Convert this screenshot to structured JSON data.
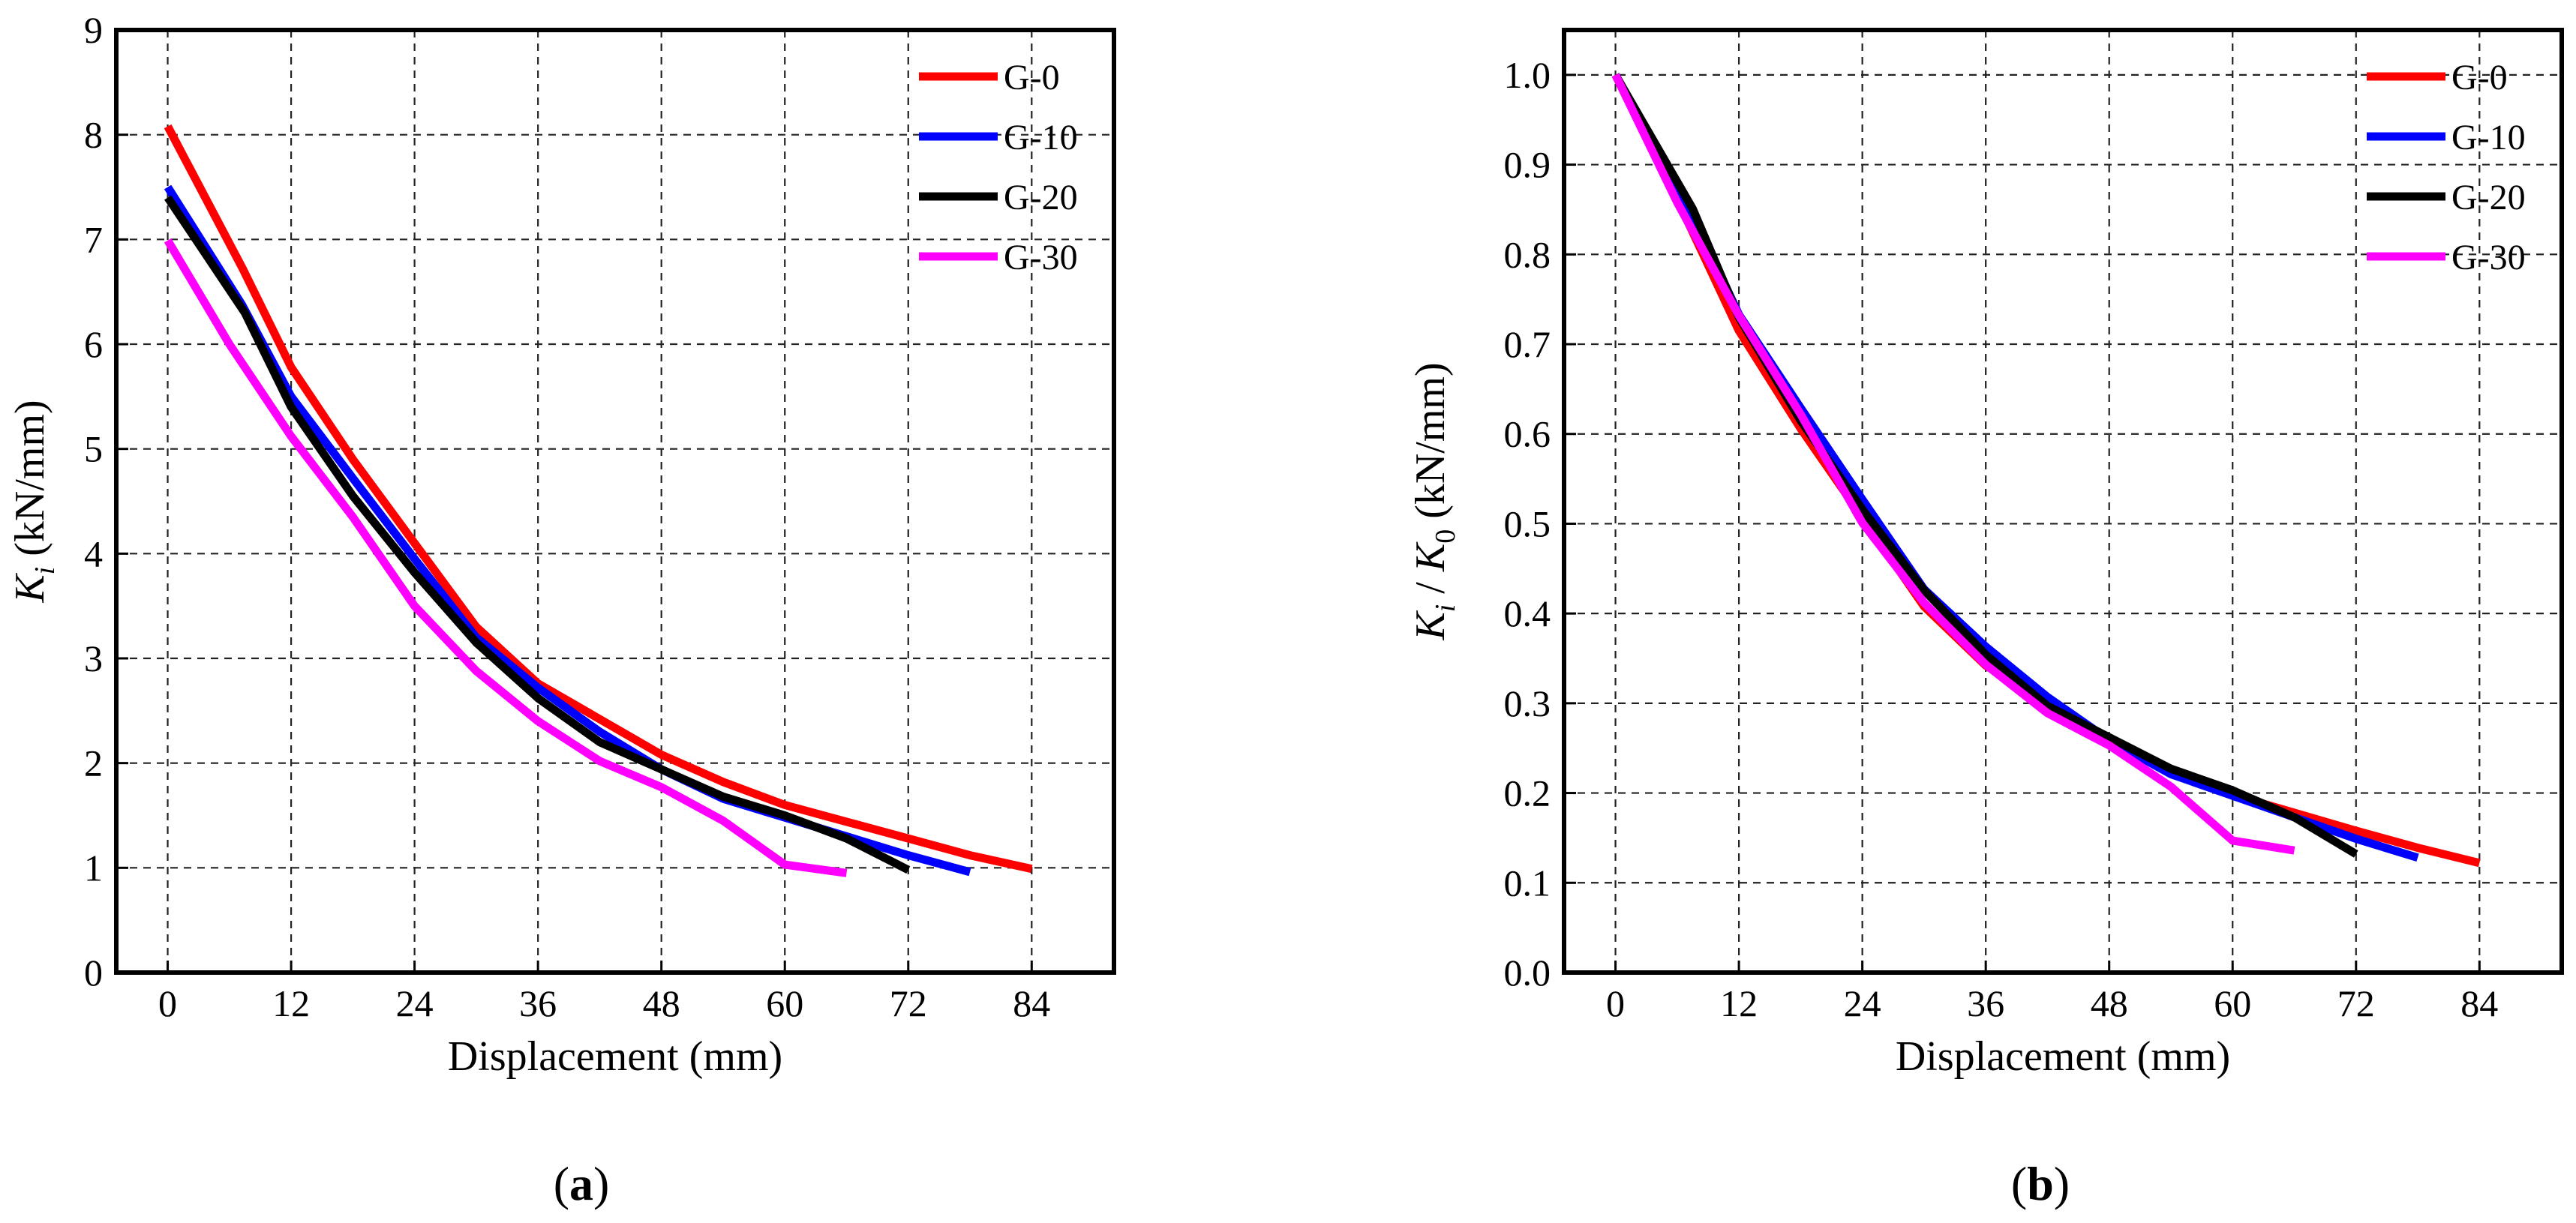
{
  "chart_data": [
    {
      "type": "line",
      "panel": "a",
      "caption": "a",
      "xlabel": "Displacement (mm)",
      "ylabel_main": "K",
      "ylabel_sub": "i",
      "ylabel_rest": " (kN/mm)",
      "xlim": [
        -5,
        92
      ],
      "ylim": [
        0,
        9
      ],
      "xticks": [
        0,
        12,
        24,
        36,
        48,
        60,
        72,
        84
      ],
      "yticks": [
        0,
        1,
        2,
        3,
        4,
        5,
        6,
        7,
        8,
        9
      ],
      "ytick_decimals": 0,
      "grid": true,
      "legend_position": "top-right",
      "series": [
        {
          "name": "G-0",
          "color": "#ff0000",
          "x": [
            0,
            7.3,
            12,
            18,
            24,
            30,
            36,
            42,
            48,
            54,
            60,
            66,
            72,
            78,
            84
          ],
          "y": [
            8.08,
            6.72,
            5.78,
            4.9,
            4.1,
            3.3,
            2.76,
            2.42,
            2.08,
            1.82,
            1.6,
            1.44,
            1.28,
            1.12,
            0.99
          ]
        },
        {
          "name": "G-10",
          "color": "#0000ff",
          "x": [
            0,
            7.2,
            12,
            18,
            24,
            30,
            36,
            42,
            48,
            54,
            60,
            66,
            72,
            78
          ],
          "y": [
            7.5,
            6.38,
            5.5,
            4.72,
            3.95,
            3.2,
            2.72,
            2.3,
            1.94,
            1.66,
            1.48,
            1.3,
            1.12,
            0.96
          ]
        },
        {
          "name": "G-20",
          "color": "#000000",
          "x": [
            0,
            7.5,
            12,
            18,
            24,
            30,
            36,
            42,
            48,
            54,
            60,
            66,
            72
          ],
          "y": [
            7.4,
            6.3,
            5.4,
            4.55,
            3.82,
            3.15,
            2.62,
            2.2,
            1.94,
            1.68,
            1.5,
            1.28,
            0.98
          ]
        },
        {
          "name": "G-30",
          "color": "#ff00ff",
          "x": [
            0,
            6,
            12,
            18,
            24,
            30,
            36,
            42,
            48,
            54,
            60,
            66
          ],
          "y": [
            6.99,
            6.0,
            5.12,
            4.35,
            3.5,
            2.88,
            2.4,
            2.02,
            1.77,
            1.45,
            1.03,
            0.95
          ]
        }
      ]
    },
    {
      "type": "line",
      "panel": "b",
      "caption": "b",
      "xlabel": "Displacement (mm)",
      "ylabel_main": "K",
      "ylabel_sub": "i",
      "ylabel_mid": " / K",
      "ylabel_sub2": "0",
      "ylabel_rest": " (kN/mm)",
      "xlim": [
        -5,
        92
      ],
      "ylim": [
        0,
        1.05
      ],
      "xticks": [
        0,
        12,
        24,
        36,
        48,
        60,
        72,
        84
      ],
      "yticks": [
        0.0,
        0.1,
        0.2,
        0.3,
        0.4,
        0.5,
        0.6,
        0.7,
        0.8,
        0.9,
        1.0
      ],
      "ytick_decimals": 1,
      "grid": true,
      "legend_position": "top-right",
      "series": [
        {
          "name": "G-0",
          "color": "#ff0000",
          "x": [
            0,
            7.3,
            12,
            18,
            24,
            30,
            36,
            42,
            48,
            54,
            60,
            66,
            72,
            78,
            84
          ],
          "y": [
            1.0,
            0.83,
            0.715,
            0.606,
            0.507,
            0.408,
            0.342,
            0.3,
            0.257,
            0.225,
            0.198,
            0.178,
            0.158,
            0.139,
            0.122
          ]
        },
        {
          "name": "G-10",
          "color": "#0000ff",
          "x": [
            0,
            7.2,
            12,
            18,
            24,
            30,
            36,
            42,
            48,
            54,
            60,
            66,
            72,
            78
          ],
          "y": [
            1.0,
            0.851,
            0.733,
            0.629,
            0.527,
            0.427,
            0.363,
            0.307,
            0.259,
            0.221,
            0.197,
            0.173,
            0.149,
            0.128
          ]
        },
        {
          "name": "G-20",
          "color": "#000000",
          "x": [
            0,
            7.5,
            12,
            18,
            24,
            30,
            36,
            42,
            48,
            54,
            60,
            66,
            72
          ],
          "y": [
            1.0,
            0.851,
            0.73,
            0.615,
            0.516,
            0.426,
            0.354,
            0.297,
            0.262,
            0.227,
            0.203,
            0.173,
            0.132
          ]
        },
        {
          "name": "G-30",
          "color": "#ff00ff",
          "x": [
            0,
            6,
            12,
            18,
            24,
            30,
            36,
            42,
            48,
            54,
            60,
            66
          ],
          "y": [
            1.0,
            0.858,
            0.732,
            0.622,
            0.501,
            0.412,
            0.343,
            0.289,
            0.253,
            0.207,
            0.147,
            0.136
          ]
        }
      ]
    }
  ]
}
